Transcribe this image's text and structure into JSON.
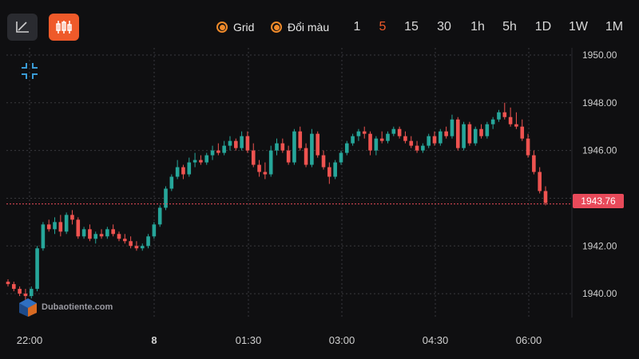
{
  "toolbar": {
    "chart_type_buttons": [
      {
        "icon": "line-chart-icon",
        "active": false
      },
      {
        "icon": "candlestick-chart-icon",
        "active": true
      }
    ],
    "options": [
      {
        "label": "Grid",
        "checked": true
      },
      {
        "label": "Đổi màu",
        "checked": true
      }
    ],
    "timeframes": [
      "1",
      "5",
      "15",
      "30",
      "1h",
      "5h",
      "1D",
      "1W",
      "1M"
    ],
    "active_timeframe": "5",
    "accent_color": "#ef5a2a"
  },
  "chart_data": {
    "type": "candlestick",
    "x_tick_labels": [
      "22:00",
      "8",
      "01:30",
      "03:00",
      "04:30",
      "06:00"
    ],
    "y_tick_labels": [
      "1950.00",
      "1948.00",
      "1946.00",
      "1944.00",
      "1942.00",
      "1940.00"
    ],
    "ylim": [
      1939.0,
      1950.3
    ],
    "grid": true,
    "last_price": "1943.76",
    "up_color": "#26a69a",
    "down_color": "#ef5350",
    "candles": [
      [
        1940.5,
        1940.6,
        1940.3,
        1940.4
      ],
      [
        1940.4,
        1940.5,
        1940.1,
        1940.2
      ],
      [
        1940.2,
        1940.3,
        1939.9,
        1940.0
      ],
      [
        1940.0,
        1940.2,
        1939.7,
        1939.9
      ],
      [
        1939.9,
        1940.3,
        1939.8,
        1940.2
      ],
      [
        1940.2,
        1942.0,
        1940.1,
        1941.9
      ],
      [
        1941.9,
        1943.0,
        1941.8,
        1942.9
      ],
      [
        1942.9,
        1943.1,
        1942.6,
        1942.7
      ],
      [
        1942.7,
        1943.2,
        1942.5,
        1943.0
      ],
      [
        1943.0,
        1943.3,
        1942.4,
        1942.6
      ],
      [
        1942.6,
        1943.4,
        1942.5,
        1943.3
      ],
      [
        1943.3,
        1943.5,
        1942.9,
        1943.1
      ],
      [
        1943.1,
        1943.2,
        1942.3,
        1942.4
      ],
      [
        1942.4,
        1942.8,
        1942.3,
        1942.7
      ],
      [
        1942.7,
        1942.9,
        1942.2,
        1942.3
      ],
      [
        1942.3,
        1942.6,
        1942.1,
        1942.5
      ],
      [
        1942.5,
        1942.7,
        1942.3,
        1942.4
      ],
      [
        1942.4,
        1942.8,
        1942.3,
        1942.7
      ],
      [
        1942.7,
        1942.9,
        1942.4,
        1942.5
      ],
      [
        1942.5,
        1942.6,
        1942.2,
        1942.3
      ],
      [
        1942.3,
        1942.5,
        1942.1,
        1942.2
      ],
      [
        1942.2,
        1942.4,
        1941.9,
        1942.0
      ],
      [
        1942.0,
        1942.2,
        1941.8,
        1941.9
      ],
      [
        1941.9,
        1942.1,
        1941.8,
        1942.0
      ],
      [
        1942.0,
        1942.5,
        1941.9,
        1942.4
      ],
      [
        1942.4,
        1943.0,
        1942.3,
        1942.9
      ],
      [
        1942.9,
        1943.7,
        1942.8,
        1943.6
      ],
      [
        1943.6,
        1944.5,
        1943.5,
        1944.4
      ],
      [
        1944.4,
        1945.0,
        1944.3,
        1944.9
      ],
      [
        1944.9,
        1945.6,
        1944.8,
        1945.3
      ],
      [
        1945.3,
        1945.4,
        1944.8,
        1945.0
      ],
      [
        1945.0,
        1945.7,
        1944.9,
        1945.5
      ],
      [
        1945.5,
        1945.9,
        1945.3,
        1945.6
      ],
      [
        1945.6,
        1945.8,
        1945.4,
        1945.5
      ],
      [
        1945.5,
        1945.9,
        1945.4,
        1945.8
      ],
      [
        1945.8,
        1946.2,
        1945.6,
        1946.0
      ],
      [
        1946.0,
        1946.3,
        1945.8,
        1945.9
      ],
      [
        1945.9,
        1946.4,
        1945.8,
        1946.2
      ],
      [
        1946.2,
        1946.6,
        1946.0,
        1946.4
      ],
      [
        1946.4,
        1946.5,
        1946.0,
        1946.1
      ],
      [
        1946.1,
        1946.8,
        1946.0,
        1946.6
      ],
      [
        1946.6,
        1946.8,
        1945.9,
        1946.0
      ],
      [
        1946.0,
        1946.3,
        1945.3,
        1945.4
      ],
      [
        1945.4,
        1945.6,
        1944.9,
        1945.1
      ],
      [
        1945.1,
        1945.5,
        1944.8,
        1945.0
      ],
      [
        1945.0,
        1946.2,
        1944.9,
        1946.0
      ],
      [
        1946.0,
        1946.5,
        1945.8,
        1946.3
      ],
      [
        1946.3,
        1946.5,
        1945.9,
        1946.0
      ],
      [
        1946.0,
        1946.2,
        1945.4,
        1945.5
      ],
      [
        1945.5,
        1946.9,
        1945.4,
        1946.8
      ],
      [
        1946.8,
        1947.0,
        1946.0,
        1946.1
      ],
      [
        1946.1,
        1946.3,
        1945.3,
        1945.4
      ],
      [
        1945.4,
        1946.9,
        1945.3,
        1946.7
      ],
      [
        1946.7,
        1946.8,
        1945.7,
        1945.8
      ],
      [
        1945.8,
        1946.0,
        1945.2,
        1945.3
      ],
      [
        1945.3,
        1945.5,
        1944.6,
        1944.9
      ],
      [
        1944.9,
        1945.6,
        1944.8,
        1945.5
      ],
      [
        1945.5,
        1946.0,
        1945.4,
        1945.9
      ],
      [
        1945.9,
        1946.4,
        1945.8,
        1946.3
      ],
      [
        1946.3,
        1946.7,
        1946.2,
        1946.6
      ],
      [
        1946.6,
        1946.9,
        1946.4,
        1946.8
      ],
      [
        1946.8,
        1947.0,
        1946.5,
        1946.7
      ],
      [
        1946.7,
        1946.8,
        1945.8,
        1946.0
      ],
      [
        1946.0,
        1946.6,
        1945.8,
        1946.5
      ],
      [
        1946.5,
        1946.8,
        1946.3,
        1946.4
      ],
      [
        1946.4,
        1946.8,
        1946.3,
        1946.7
      ],
      [
        1946.7,
        1947.0,
        1946.6,
        1946.9
      ],
      [
        1946.9,
        1947.0,
        1946.5,
        1946.6
      ],
      [
        1946.6,
        1946.8,
        1946.3,
        1946.4
      ],
      [
        1946.4,
        1946.6,
        1946.1,
        1946.2
      ],
      [
        1946.2,
        1946.4,
        1945.9,
        1946.0
      ],
      [
        1946.0,
        1946.3,
        1945.9,
        1946.2
      ],
      [
        1946.2,
        1946.7,
        1946.1,
        1946.6
      ],
      [
        1946.6,
        1946.8,
        1946.2,
        1946.3
      ],
      [
        1946.3,
        1946.9,
        1946.2,
        1946.8
      ],
      [
        1946.8,
        1947.0,
        1946.5,
        1946.6
      ],
      [
        1946.6,
        1947.5,
        1946.5,
        1947.3
      ],
      [
        1947.3,
        1947.4,
        1946.0,
        1946.1
      ],
      [
        1946.1,
        1947.2,
        1946.0,
        1947.1
      ],
      [
        1947.1,
        1947.2,
        1946.2,
        1946.3
      ],
      [
        1946.3,
        1947.0,
        1946.2,
        1946.9
      ],
      [
        1946.9,
        1947.1,
        1946.5,
        1946.6
      ],
      [
        1946.6,
        1947.2,
        1946.5,
        1947.1
      ],
      [
        1947.1,
        1947.4,
        1946.9,
        1947.3
      ],
      [
        1947.3,
        1947.7,
        1947.2,
        1947.6
      ],
      [
        1947.6,
        1948.0,
        1947.3,
        1947.4
      ],
      [
        1947.4,
        1947.8,
        1947.0,
        1947.1
      ],
      [
        1947.1,
        1947.6,
        1946.9,
        1947.0
      ],
      [
        1947.0,
        1947.3,
        1946.4,
        1946.5
      ],
      [
        1946.5,
        1946.7,
        1945.7,
        1945.8
      ],
      [
        1945.8,
        1946.0,
        1945.0,
        1945.1
      ],
      [
        1945.1,
        1945.3,
        1944.2,
        1944.3
      ],
      [
        1944.3,
        1944.5,
        1943.7,
        1943.8
      ]
    ]
  },
  "watermark": {
    "text": "Dubaotiente.com"
  }
}
